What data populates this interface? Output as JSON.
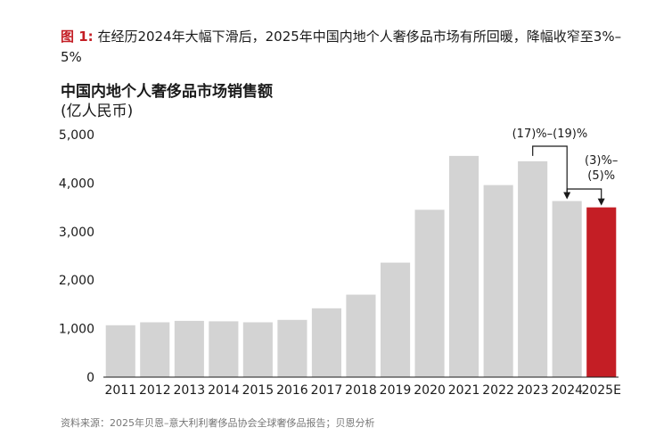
{
  "figure": {
    "label": "图 1:",
    "caption": "在经历2024年大幅下滑后，2025年中国内地个人奢侈品市场有所回暖，降幅收窄至3%–5%"
  },
  "source": "资料来源：2025年贝恩–意大利利奢侈品协会全球奢侈品报告；贝恩分析",
  "colors": {
    "bar": "#d3d3d3",
    "highlight": "#c41e25",
    "accent": "#c41e25"
  },
  "chart_data": {
    "type": "bar",
    "title": "中国内地个人奢侈品市场销售额",
    "ylabel": "(亿人民币)",
    "xlabel": "",
    "ylim": [
      0,
      5000
    ],
    "yticks": [
      0,
      1000,
      2000,
      3000,
      4000,
      5000
    ],
    "ytick_labels": [
      "0",
      "1,000",
      "2,000",
      "3,000",
      "4,000",
      "5,000"
    ],
    "categories": [
      "2011",
      "2012",
      "2013",
      "2014",
      "2015",
      "2016",
      "2017",
      "2018",
      "2019",
      "2020",
      "2021",
      "2022",
      "2023",
      "2024",
      "2025E"
    ],
    "values": [
      1070,
      1130,
      1160,
      1150,
      1130,
      1180,
      1420,
      1700,
      2360,
      3450,
      4560,
      3960,
      4450,
      3630,
      3500
    ],
    "highlight_category": "2025E",
    "grid": false,
    "annotations": [
      {
        "text": "(17)%–(19)%",
        "from": "2023",
        "to": "2024"
      },
      {
        "text_lines": [
          "(3)%–",
          "(5)%"
        ],
        "from": "2024",
        "to": "2025E"
      }
    ]
  }
}
